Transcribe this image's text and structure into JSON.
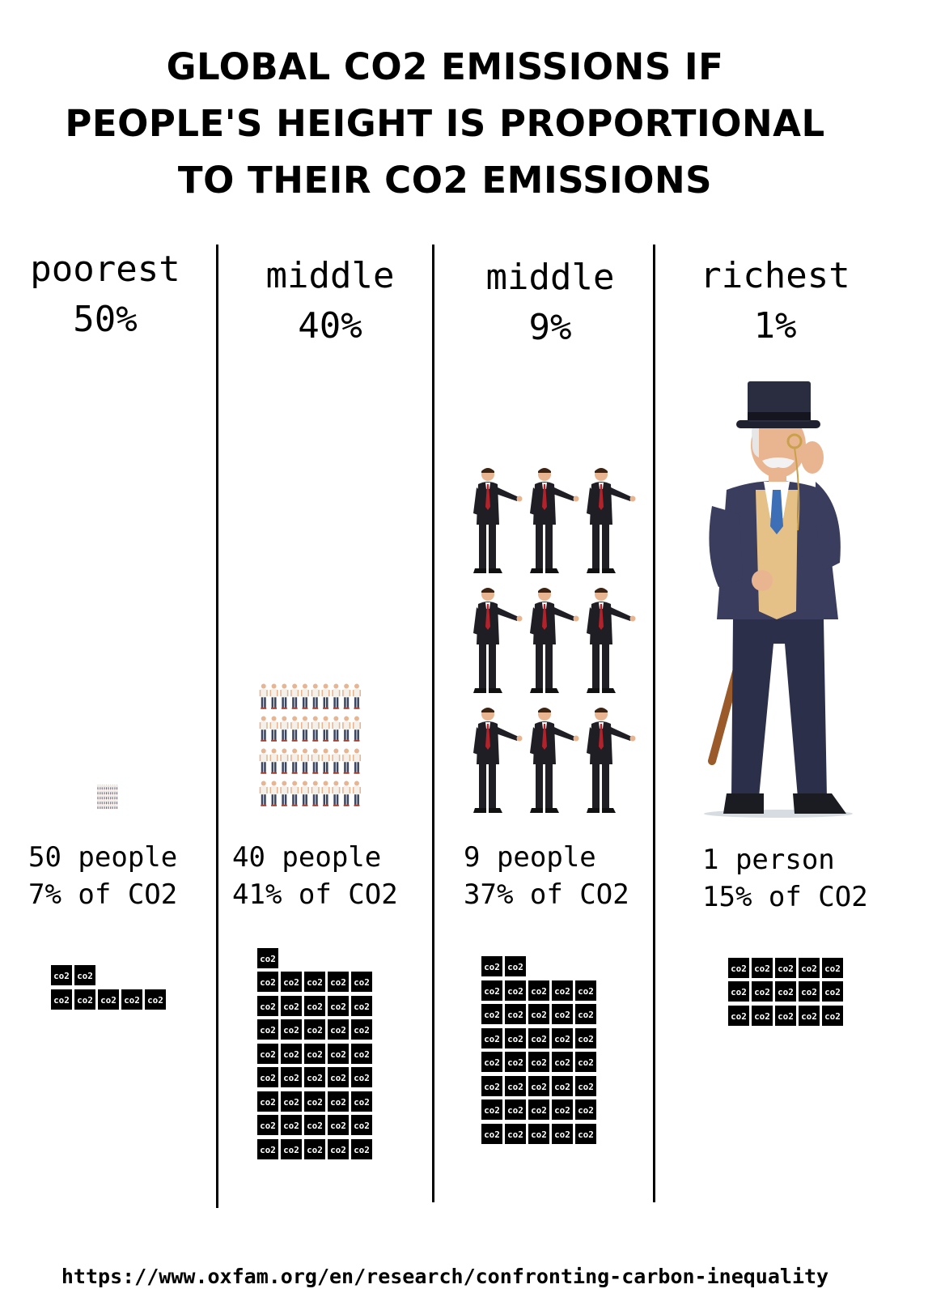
{
  "title": {
    "lines": [
      "GLOBAL CO2 EMISSIONS IF",
      "PEOPLE'S HEIGHT IS PROPORTIONAL",
      "TO THEIR CO2 EMISSIONS"
    ]
  },
  "source": "https://www.oxfam.org/en/research/confronting-carbon-inequality",
  "block_label": "co2",
  "colors": {
    "background": "#ffffff",
    "block": "#000000",
    "suit": "#1e1e24",
    "tie": "#b3222a",
    "skin": "#e9b591",
    "rich_coat": "#3a3d5e",
    "vest": "#e5c188",
    "cane": "#9a5a2a",
    "small_shirt": "#f4f1ea",
    "small_pants": "#3b4660"
  },
  "chart_data": {
    "type": "pictograph",
    "columns": [
      {
        "label_line1": "poorest",
        "label_line2": "50%",
        "people": "50 people",
        "share": "7% of CO2",
        "population_pct": 50,
        "co2_pct": 7,
        "co2_blocks": 7
      },
      {
        "label_line1": "middle",
        "label_line2": "40%",
        "people": "40 people",
        "share": "41% of CO2",
        "population_pct": 40,
        "co2_pct": 41,
        "co2_blocks": 41
      },
      {
        "label_line1": "middle",
        "label_line2": "9%",
        "people": "9 people",
        "share": "37% of CO2",
        "population_pct": 9,
        "co2_pct": 37,
        "co2_blocks": 37
      },
      {
        "label_line1": "richest",
        "label_line2": "1%",
        "people": "1 person",
        "share": "15% of CO2",
        "population_pct": 1,
        "co2_pct": 15,
        "co2_blocks": 15
      }
    ]
  }
}
